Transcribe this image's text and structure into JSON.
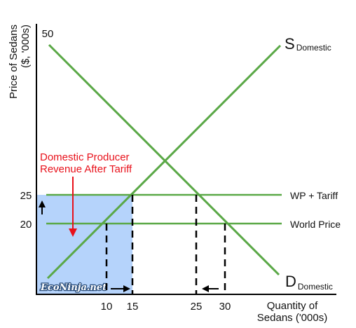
{
  "axis": {
    "y_title_line1": "Price of Sedans",
    "y_title_line2": "($, '000s)",
    "x_title_line1": "Quantity of",
    "x_title_line2": "Sedans ('000s)",
    "y_ticks": [
      "50",
      "25",
      "20"
    ],
    "x_ticks": [
      "10",
      "15",
      "25",
      "30"
    ]
  },
  "curves": {
    "supply_main": "S",
    "supply_sub": "Domestic",
    "demand_main": "D",
    "demand_sub": "Domestic"
  },
  "price_lines": {
    "tariff_label": "WP + Tariff",
    "world_label": "World Price"
  },
  "annotation": {
    "line1": "Domestic Producer",
    "line2": "Revenue After Tariff"
  },
  "watermark": "EcoNinja.net",
  "colors": {
    "curve_green": "#5aa846",
    "shade_blue": "#b5d3fb",
    "annotation_red": "#e8111b",
    "watermark_navy": "#2a4d7a"
  },
  "chart_data": {
    "type": "supply-demand",
    "supply_points": [
      [
        0,
        10
      ],
      [
        39,
        48
      ]
    ],
    "demand_points": [
      [
        2,
        48
      ],
      [
        38,
        10
      ]
    ],
    "world_price": 20,
    "world_price_plus_tariff": 25,
    "y_max_label": 50,
    "domestic_supply_world_price": 10,
    "domestic_supply_tariff": 15,
    "domestic_demand_tariff": 25,
    "domestic_demand_world_price": 30,
    "shaded_area": {
      "x": [
        0,
        15
      ],
      "y": [
        0,
        25
      ]
    }
  }
}
